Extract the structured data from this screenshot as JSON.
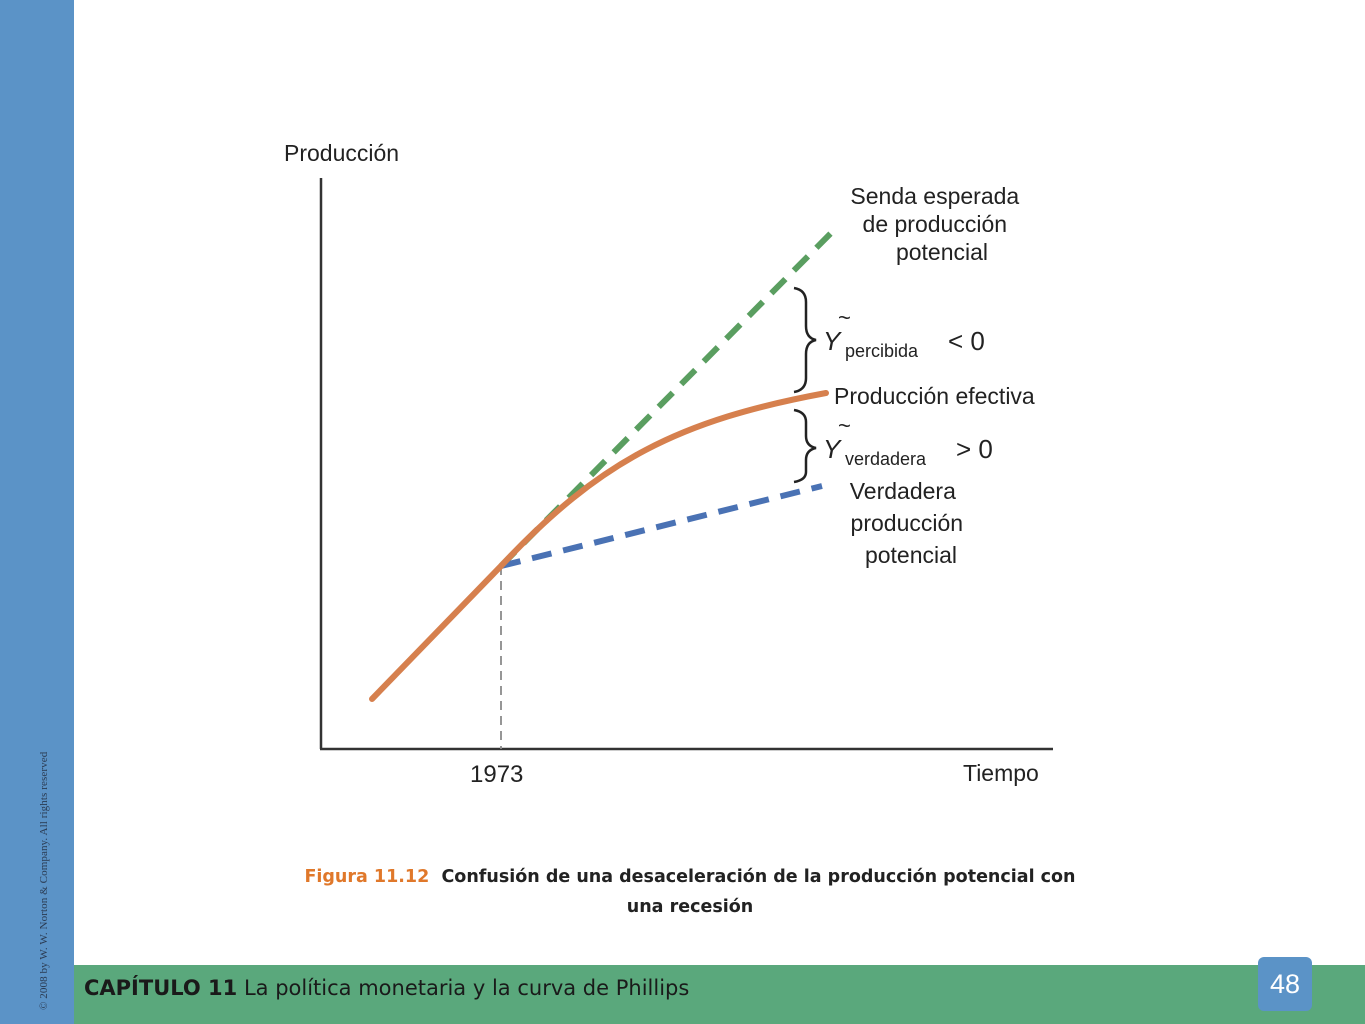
{
  "footer": {
    "chapter": "CAPÍTULO 11",
    "title": "La política monetaria y la curva de Phillips",
    "page_number": "48"
  },
  "copyright": "© 2008 by W. W. Norton & Company. All rights reserved",
  "figure": {
    "y_axis_label": "Producción",
    "x_axis_label": "Tiempo",
    "x_tick": "1973",
    "expected_line_label": [
      "Senda esperada",
      "de producción",
      "potencial"
    ],
    "actual_line_label": "Producción efectiva",
    "true_line_label": [
      "Verdadera",
      "producción",
      "potencial"
    ],
    "gap_perceived": {
      "symbol": "Y",
      "subscript": "percibida",
      "relation": "< 0"
    },
    "gap_true": {
      "symbol": "Y",
      "subscript": "verdadera",
      "relation": "> 0"
    },
    "colors": {
      "expected": "#5a9e60",
      "actual": "#d6804e",
      "true": "#4a72b4",
      "axis": "#333333"
    }
  },
  "caption": {
    "figure_number": "Figura 11.12",
    "text": "Confusión de una desaceleración de la producción potencial con una recesión"
  }
}
